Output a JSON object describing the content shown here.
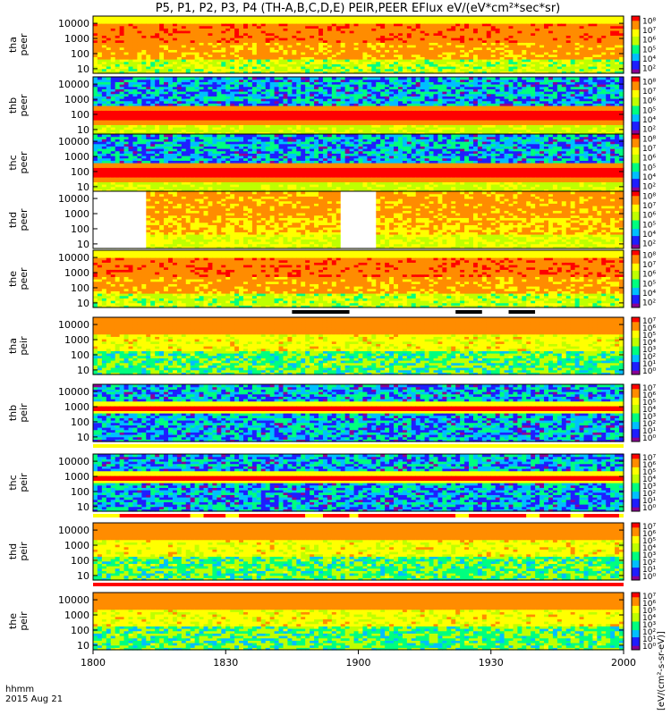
{
  "title": "P5, P1, P2, P3, P4 (TH-A,B,C,D,E) PEIR,PEER EFlux eV/(eV*cm²*sec*sr)",
  "footer": {
    "time_label": "hhmm",
    "date_label": "2015 Aug 21"
  },
  "colorbar_units_label": "[eV/(cm²-s-sr-eV)]",
  "chart_data": {
    "type": "heatmap",
    "x_axis": {
      "ticks": [
        "1800",
        "1830",
        "1900",
        "1930",
        "2000"
      ],
      "range_hhmm": [
        "1800",
        "2000"
      ]
    },
    "y_axis": {
      "scale": "log",
      "range_eV": [
        5,
        30000
      ],
      "ticks": [
        "10",
        "100",
        "1000",
        "10000"
      ]
    },
    "panels": [
      {
        "probe": "tha",
        "species": "peer",
        "ylabel": [
          "tha",
          "peer"
        ],
        "colorbar_ticks": [
          "10²",
          "10⁴",
          "10⁵",
          "10⁶",
          "10⁷",
          "10⁸"
        ],
        "pattern": "electron-hot"
      },
      {
        "probe": "thb",
        "species": "peer",
        "ylabel": [
          "thb",
          "peer"
        ],
        "colorbar_ticks": [
          "10²",
          "10⁴",
          "10⁵",
          "10⁶",
          "10⁷",
          "10⁸"
        ],
        "pattern": "electron-band"
      },
      {
        "probe": "thc",
        "species": "peer",
        "ylabel": [
          "thc",
          "peer"
        ],
        "colorbar_ticks": [
          "10²",
          "10⁴",
          "10⁵",
          "10⁶",
          "10⁷",
          "10⁸"
        ],
        "pattern": "electron-band"
      },
      {
        "probe": "thd",
        "species": "peer",
        "ylabel": [
          "thd",
          "peer"
        ],
        "colorbar_ticks": [
          "10²",
          "10⁴",
          "10⁵",
          "10⁶",
          "10⁷",
          "10⁸"
        ],
        "pattern": "electron-gaps",
        "data_gaps_hhmm": [
          [
            "1800",
            "1812"
          ],
          [
            "1856",
            "1904"
          ]
        ]
      },
      {
        "probe": "the",
        "species": "peer",
        "ylabel": [
          "the",
          "peer"
        ],
        "colorbar_ticks": [
          "10²",
          "10⁴",
          "10⁵",
          "10⁶",
          "10⁷",
          "10⁸"
        ],
        "pattern": "electron-hot"
      },
      {
        "probe": "tha",
        "species": "peir",
        "ylabel": [
          "tha",
          "peir"
        ],
        "colorbar_ticks": [
          "10⁰",
          "10¹",
          "10²",
          "10³",
          "10⁴",
          "10⁵",
          "10⁶",
          "10⁷"
        ],
        "pattern": "ion"
      },
      {
        "probe": "thb",
        "species": "peir",
        "ylabel": [
          "thb",
          "peir"
        ],
        "colorbar_ticks": [
          "10⁰",
          "10¹",
          "10²",
          "10³",
          "10⁴",
          "10⁵",
          "10⁶",
          "10⁷"
        ],
        "pattern": "ion-band"
      },
      {
        "probe": "thc",
        "species": "peir",
        "ylabel": [
          "thc",
          "peir"
        ],
        "colorbar_ticks": [
          "10⁰",
          "10¹",
          "10²",
          "10³",
          "10⁴",
          "10⁵",
          "10⁶",
          "10⁷"
        ],
        "pattern": "ion-band"
      },
      {
        "probe": "thd",
        "species": "peir",
        "ylabel": [
          "thd",
          "peir"
        ],
        "colorbar_ticks": [
          "10⁰",
          "10¹",
          "10²",
          "10³",
          "10⁴",
          "10⁵",
          "10⁶",
          "10⁷"
        ],
        "pattern": "ion"
      },
      {
        "probe": "the",
        "species": "peir",
        "ylabel": [
          "the",
          "peir"
        ],
        "colorbar_ticks": [
          "10⁰",
          "10¹",
          "10²",
          "10³",
          "10⁴",
          "10⁵",
          "10⁶",
          "10⁷"
        ],
        "pattern": "ion"
      }
    ],
    "mode_bars": [
      {
        "after_panel": 4,
        "segments": [
          {
            "from": "1800",
            "to": "1845",
            "color": "#ffffff"
          },
          {
            "from": "1845",
            "to": "1858",
            "color": "#000000"
          },
          {
            "from": "1858",
            "to": "1922",
            "color": "#ffffff"
          },
          {
            "from": "1922",
            "to": "1928",
            "color": "#000000"
          },
          {
            "from": "1928",
            "to": "1934",
            "color": "#ffffff"
          },
          {
            "from": "1934",
            "to": "1940",
            "color": "#000000"
          },
          {
            "from": "1940",
            "to": "2000",
            "color": "#ffffff"
          }
        ]
      },
      {
        "after_panel": 6,
        "segments": [
          {
            "from": "1800",
            "to": "2000",
            "color": "#ffff00"
          }
        ]
      },
      {
        "after_panel": 7,
        "segments": [
          {
            "from": "1800",
            "to": "1806",
            "color": "#ffff00"
          },
          {
            "from": "1806",
            "to": "1822",
            "color": "#ff0000"
          },
          {
            "from": "1822",
            "to": "1825",
            "color": "#ffff00"
          },
          {
            "from": "1825",
            "to": "1830",
            "color": "#ff0000"
          },
          {
            "from": "1830",
            "to": "1833",
            "color": "#ffff00"
          },
          {
            "from": "1833",
            "to": "1848",
            "color": "#ff0000"
          },
          {
            "from": "1848",
            "to": "1852",
            "color": "#ffff00"
          },
          {
            "from": "1852",
            "to": "1858",
            "color": "#ff0000"
          },
          {
            "from": "1858",
            "to": "1900",
            "color": "#ffff00"
          },
          {
            "from": "1900",
            "to": "1922",
            "color": "#ff0000"
          },
          {
            "from": "1922",
            "to": "1925",
            "color": "#ffff00"
          },
          {
            "from": "1925",
            "to": "1938",
            "color": "#ff0000"
          },
          {
            "from": "1938",
            "to": "1941",
            "color": "#ffff00"
          },
          {
            "from": "1941",
            "to": "1948",
            "color": "#ff0000"
          },
          {
            "from": "1948",
            "to": "1951",
            "color": "#ffff00"
          },
          {
            "from": "1951",
            "to": "1959",
            "color": "#ff0000"
          },
          {
            "from": "1959",
            "to": "2000",
            "color": "#ffff00"
          }
        ]
      },
      {
        "after_panel": 8,
        "segments": [
          {
            "from": "1800",
            "to": "2000",
            "color": "#ff0000"
          }
        ]
      }
    ],
    "colormap": [
      "#8b0094",
      "#1e1eff",
      "#00bfff",
      "#00ff7f",
      "#bfff00",
      "#ffff00",
      "#ff8c00",
      "#ff0000"
    ]
  }
}
